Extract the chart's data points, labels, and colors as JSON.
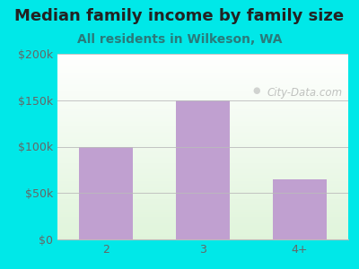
{
  "title": "Median family income by family size",
  "subtitle": "All residents in Wilkeson, WA",
  "categories": [
    "2",
    "3",
    "4+"
  ],
  "values": [
    100000,
    150000,
    65000
  ],
  "bar_color": "#c0a0d0",
  "background_color": "#00e8e8",
  "ylim": [
    0,
    200000
  ],
  "yticks": [
    0,
    50000,
    100000,
    150000,
    200000
  ],
  "ytick_labels": [
    "$0",
    "$50k",
    "$100k",
    "$150k",
    "$200k"
  ],
  "title_fontsize": 13,
  "subtitle_fontsize": 10,
  "tick_fontsize": 9,
  "watermark": "City-Data.com",
  "title_color": "#222222",
  "subtitle_color": "#2a7a7a",
  "tick_color": "#666666",
  "grid_color": "#bbbbbb"
}
